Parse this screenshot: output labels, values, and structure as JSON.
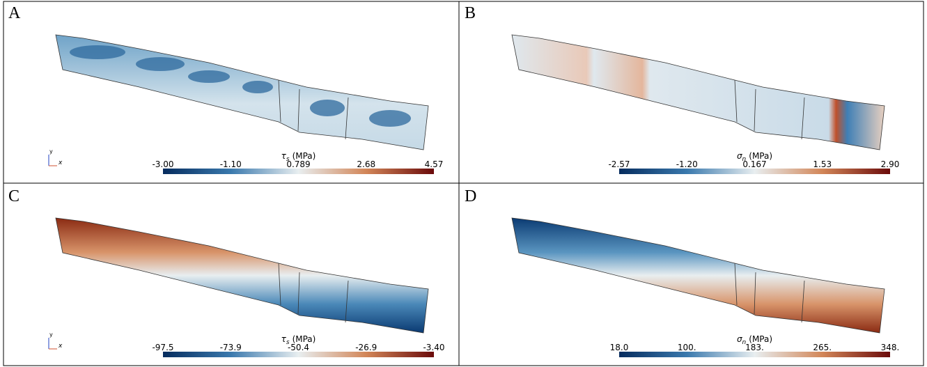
{
  "panels": [
    {
      "label": "A",
      "triad": [
        "y",
        "x"
      ],
      "colorbar": {
        "symbol": "τ",
        "subscript": "s",
        "unit": "(MPa)",
        "ticks": [
          "-3.00",
          "-1.10",
          "0.789",
          "2.68",
          "4.57"
        ]
      }
    },
    {
      "label": "B",
      "colorbar": {
        "symbol": "σ",
        "subscript": "n",
        "unit": "(MPa)",
        "ticks": [
          "-2.57",
          "-1.20",
          "0.167",
          "1.53",
          "2.90"
        ]
      }
    },
    {
      "label": "C",
      "triad": [
        "y",
        "x"
      ],
      "colorbar": {
        "symbol": "τ",
        "subscript": "s",
        "unit": "(MPa)",
        "ticks": [
          "-97.5",
          "-73.9",
          "-50.4",
          "-26.9",
          "-3.40"
        ]
      }
    },
    {
      "label": "D",
      "colorbar": {
        "symbol": "σ",
        "subscript": "n",
        "unit": "(MPa)",
        "ticks": [
          "18.0",
          "100.",
          "183.",
          "265.",
          "348."
        ]
      }
    }
  ]
}
